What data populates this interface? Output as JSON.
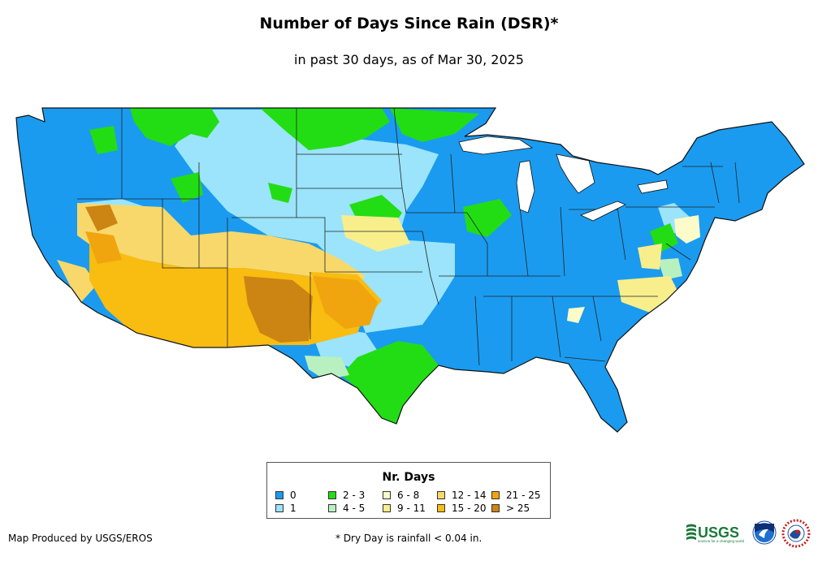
{
  "title": "Number of Days Since Rain (DSR)*",
  "subtitle": "in past 30 days, as of Mar 30, 2025",
  "legend": {
    "title": "Nr. Days",
    "items": [
      {
        "label": "0",
        "color": "#1a9bf0"
      },
      {
        "label": "1",
        "color": "#9be4fb"
      },
      {
        "label": "2 - 3",
        "color": "#22dd14"
      },
      {
        "label": "4 - 5",
        "color": "#b9f0c0"
      },
      {
        "label": "6 - 8",
        "color": "#fcfbc9"
      },
      {
        "label": "9 - 11",
        "color": "#f8ee8c"
      },
      {
        "label": "12 - 14",
        "color": "#f8d86a"
      },
      {
        "label": "15 - 20",
        "color": "#f9bc10"
      },
      {
        "label": "21 - 25",
        "color": "#f0a40e"
      },
      {
        "label": "> 25",
        "color": "#cc8412"
      }
    ]
  },
  "footer": {
    "credit": "Map Produced by USGS/EROS",
    "note": "* Dry Day is rainfall < 0.04 in."
  },
  "logos": {
    "usgs_text": "USGS",
    "usgs_tagline": "science for a changing world"
  }
}
